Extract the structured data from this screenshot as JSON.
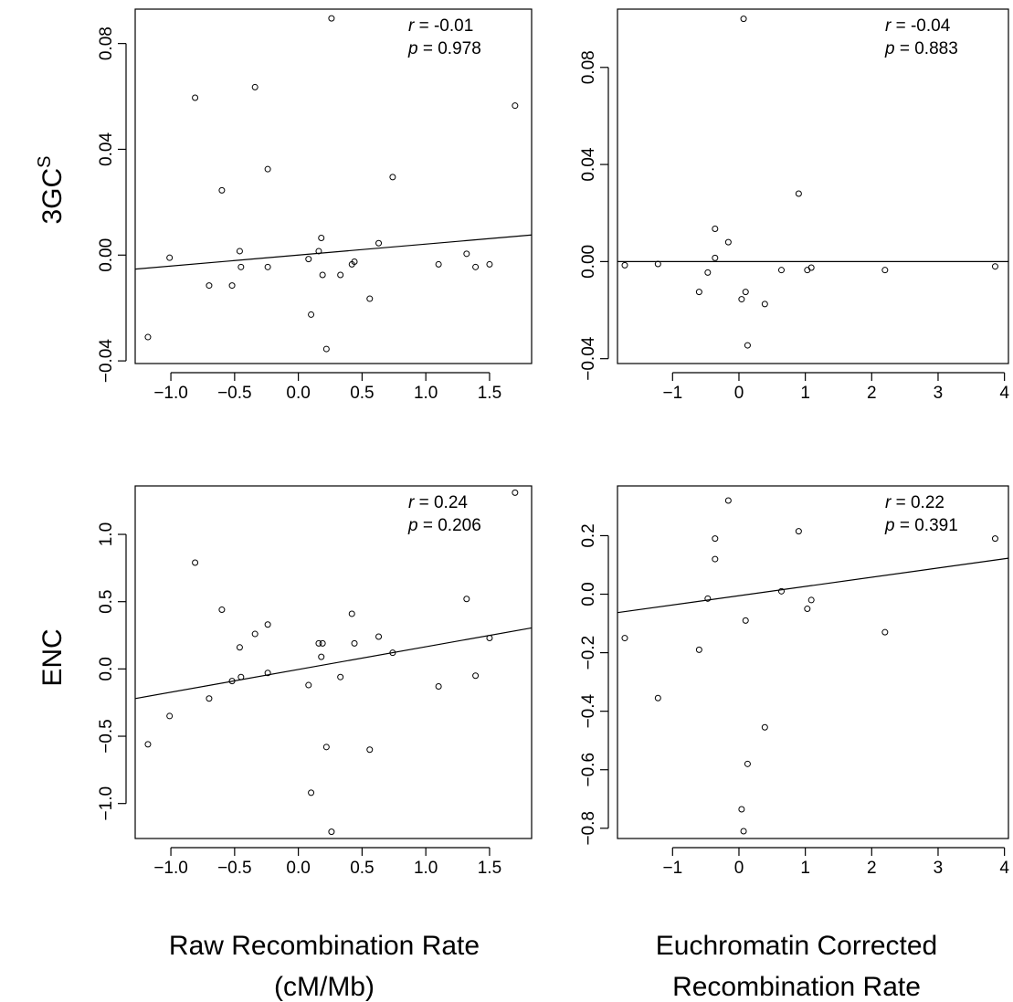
{
  "row_labels": [
    {
      "main": "3GC",
      "sup": "S"
    },
    {
      "main": "ENC",
      "sup": ""
    }
  ],
  "column_labels": [
    [
      "Raw Recombination Rate",
      "(cM/Mb)"
    ],
    [
      "Euchromatin Corrected",
      "Recombination Rate"
    ]
  ],
  "chart_data": [
    {
      "type": "scatter",
      "row": "3GC^S",
      "column": "Raw Recombination Rate (cM/Mb)",
      "xlim": [
        -1.28,
        1.83
      ],
      "ylim": [
        -0.041,
        0.093
      ],
      "xticks": [
        -1.0,
        -0.5,
        0.0,
        0.5,
        1.0,
        1.5
      ],
      "xtick_labels": [
        "−1.0",
        "−0.5",
        "0.0",
        "0.5",
        "1.0",
        "1.5"
      ],
      "yticks": [
        -0.04,
        0.0,
        0.04,
        0.08
      ],
      "ytick_labels": [
        "−0.04",
        "0.00",
        "0.04",
        "0.08"
      ],
      "annotation": {
        "r_label": "r",
        "r_value": " = -0.01",
        "p_label": "p",
        "p_value": " = 0.978"
      },
      "fit_line": {
        "x": [
          -1.28,
          1.83
        ],
        "y": [
          -0.0053,
          0.0076
        ]
      },
      "x": [
        -1.18,
        -1.01,
        -0.81,
        -0.7,
        -0.6,
        -0.52,
        -0.46,
        -0.45,
        -0.34,
        -0.24,
        -0.24,
        0.08,
        0.1,
        0.16,
        0.18,
        0.19,
        0.22,
        0.26,
        0.33,
        0.42,
        0.44,
        0.56,
        0.63,
        0.74,
        1.1,
        1.32,
        1.39,
        1.5,
        1.7
      ],
      "y": [
        -0.031,
        -0.001,
        0.0595,
        -0.0115,
        0.0245,
        -0.0115,
        0.0015,
        -0.0045,
        0.0635,
        0.0325,
        -0.0045,
        -0.0015,
        -0.0225,
        0.0015,
        0.0065,
        -0.0075,
        -0.0355,
        0.0895,
        -0.0075,
        -0.0035,
        -0.0025,
        -0.0165,
        0.0045,
        0.0295,
        -0.0035,
        0.0005,
        -0.0045,
        -0.0035,
        0.0565
      ]
    },
    {
      "type": "scatter",
      "row": "3GC^S",
      "column": "Euchromatin Corrected Recombination Rate",
      "xlim": [
        -1.83,
        4.06
      ],
      "ylim": [
        -0.042,
        0.104
      ],
      "xticks": [
        -1,
        0,
        1,
        2,
        3,
        4
      ],
      "xtick_labels": [
        "−1",
        "0",
        "1",
        "2",
        "3",
        "4"
      ],
      "yticks": [
        -0.04,
        0.0,
        0.04,
        0.08
      ],
      "ytick_labels": [
        "−0.04",
        "0.00",
        "0.04",
        "0.08"
      ],
      "annotation": {
        "r_label": "r",
        "r_value": " = -0.04",
        "p_label": "p",
        "p_value": " = 0.883"
      },
      "fit_line": {
        "x": [
          -1.83,
          4.06
        ],
        "y": [
          0.0,
          0.0
        ]
      },
      "x": [
        -1.72,
        -1.22,
        -0.6,
        -0.47,
        -0.36,
        -0.36,
        -0.16,
        0.04,
        0.1,
        0.13,
        0.07,
        0.39,
        0.64,
        0.9,
        1.03,
        1.09,
        2.2,
        3.86
      ],
      "y": [
        -0.0015,
        -0.001,
        -0.0125,
        -0.0045,
        0.0135,
        0.0015,
        0.008,
        -0.0155,
        -0.0125,
        -0.0345,
        0.1,
        -0.0175,
        -0.0035,
        0.028,
        -0.0035,
        -0.0025,
        -0.0035,
        -0.002
      ]
    },
    {
      "type": "scatter",
      "row": "ENC",
      "column": "Raw Recombination Rate (cM/Mb)",
      "xlim": [
        -1.28,
        1.83
      ],
      "ylim": [
        -1.26,
        1.36
      ],
      "xticks": [
        -1.0,
        -0.5,
        0.0,
        0.5,
        1.0,
        1.5
      ],
      "xtick_labels": [
        "−1.0",
        "−0.5",
        "0.0",
        "0.5",
        "1.0",
        "1.5"
      ],
      "yticks": [
        -1.0,
        -0.5,
        0.0,
        0.5,
        1.0
      ],
      "ytick_labels": [
        "−1.0",
        "−0.5",
        "0.0",
        "0.5",
        "1.0"
      ],
      "annotation": {
        "r_label": "r",
        "r_value": " = 0.24",
        "p_label": "p",
        "p_value": " = 0.206"
      },
      "fit_line": {
        "x": [
          -1.28,
          1.83
        ],
        "y": [
          -0.22,
          0.305
        ]
      },
      "x": [
        -1.18,
        -1.01,
        -0.81,
        -0.7,
        -0.6,
        -0.52,
        -0.46,
        -0.45,
        -0.34,
        -0.24,
        -0.24,
        0.08,
        0.1,
        0.16,
        0.18,
        0.19,
        0.22,
        0.26,
        0.33,
        0.42,
        0.44,
        0.56,
        0.63,
        0.74,
        1.1,
        1.32,
        1.39,
        1.5,
        1.7
      ],
      "y": [
        -0.56,
        -0.35,
        0.79,
        -0.22,
        0.44,
        -0.09,
        0.16,
        -0.06,
        0.26,
        0.33,
        -0.03,
        -0.12,
        -0.92,
        0.19,
        0.09,
        0.19,
        -0.58,
        -1.21,
        -0.06,
        0.41,
        0.19,
        -0.6,
        0.24,
        0.12,
        -0.13,
        0.52,
        -0.05,
        0.23,
        1.31
      ]
    },
    {
      "type": "scatter",
      "row": "ENC",
      "column": "Euchromatin Corrected Recombination Rate",
      "xlim": [
        -1.83,
        4.06
      ],
      "ylim": [
        -0.835,
        0.37
      ],
      "xticks": [
        -1,
        0,
        1,
        2,
        3,
        4
      ],
      "xtick_labels": [
        "−1",
        "0",
        "1",
        "2",
        "3",
        "4"
      ],
      "yticks": [
        -0.8,
        -0.6,
        -0.4,
        -0.2,
        0.0,
        0.2
      ],
      "ytick_labels": [
        "−0.8",
        "−0.6",
        "−0.4",
        "−0.2",
        "0.0",
        "0.2"
      ],
      "annotation": {
        "r_label": "r",
        "r_value": " = 0.22",
        "p_label": "p",
        "p_value": " = 0.391"
      },
      "fit_line": {
        "x": [
          -1.83,
          4.06
        ],
        "y": [
          -0.063,
          0.123
        ]
      },
      "x": [
        -1.72,
        -1.22,
        -0.6,
        -0.47,
        -0.36,
        -0.36,
        -0.16,
        0.04,
        0.1,
        0.13,
        0.07,
        0.39,
        0.64,
        0.9,
        1.03,
        1.09,
        2.2,
        3.86
      ],
      "y": [
        -0.15,
        -0.355,
        -0.19,
        -0.015,
        0.19,
        0.12,
        0.32,
        -0.735,
        -0.09,
        -0.58,
        -0.81,
        -0.455,
        0.01,
        0.215,
        -0.05,
        -0.02,
        -0.13,
        0.19
      ]
    }
  ]
}
